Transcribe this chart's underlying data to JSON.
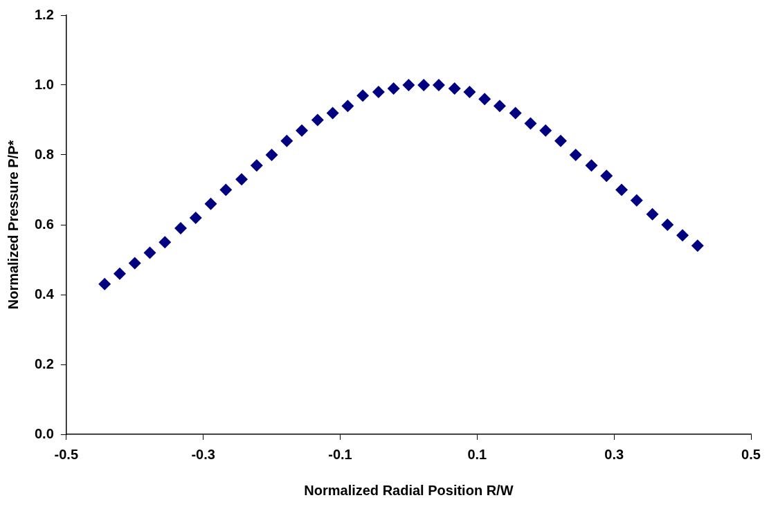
{
  "chart_data": {
    "type": "scatter",
    "xlabel": "Normalized Radial Position R/W",
    "ylabel": "Normalized Pressure P/P*",
    "x": [
      -0.444,
      -0.422,
      -0.4,
      -0.378,
      -0.356,
      -0.333,
      -0.311,
      -0.289,
      -0.267,
      -0.244,
      -0.222,
      -0.2,
      -0.178,
      -0.156,
      -0.133,
      -0.111,
      -0.089,
      -0.067,
      -0.044,
      -0.022,
      0,
      0.022,
      0.044,
      0.067,
      0.089,
      0.111,
      0.133,
      0.156,
      0.178,
      0.2,
      0.222,
      0.244,
      0.267,
      0.289,
      0.311,
      0.333,
      0.356,
      0.378,
      0.4,
      0.422
    ],
    "series": [
      {
        "color": "#000080",
        "values": [
          0.43,
          0.46,
          0.49,
          0.52,
          0.55,
          0.59,
          0.62,
          0.66,
          0.7,
          0.73,
          0.77,
          0.8,
          0.84,
          0.87,
          0.9,
          0.92,
          0.94,
          0.97,
          0.98,
          0.99,
          1.0,
          1.0,
          1.0,
          0.99,
          0.98,
          0.96,
          0.94,
          0.92,
          0.89,
          0.87,
          0.84,
          0.8,
          0.77,
          0.74,
          0.7,
          0.67,
          0.63,
          0.6,
          0.57,
          0.54
        ]
      }
    ],
    "xlim": [
      -0.5,
      0.5
    ],
    "xticks": [
      {
        "value": -0.5,
        "label": "-0.5"
      },
      {
        "value": -0.3,
        "label": "-0.3"
      },
      {
        "value": -0.1,
        "label": "-0.1"
      },
      {
        "value": 0.1,
        "label": "0.1"
      },
      {
        "value": 0.3,
        "label": "0.3"
      },
      {
        "value": 0.5,
        "label": "0.5"
      }
    ],
    "ylim": [
      0,
      1.2
    ],
    "yticks": [
      {
        "value": 0,
        "label": "0.0"
      },
      {
        "value": 0.2,
        "label": "0.2"
      },
      {
        "value": 0.4,
        "label": "0.4"
      },
      {
        "value": 0.6,
        "label": "0.6"
      },
      {
        "value": 0.8,
        "label": "0.8"
      },
      {
        "value": 1,
        "label": "1.0"
      },
      {
        "value": 1.2,
        "label": "1.2"
      }
    ],
    "marker": "diamond",
    "grid": false,
    "legend": false
  }
}
